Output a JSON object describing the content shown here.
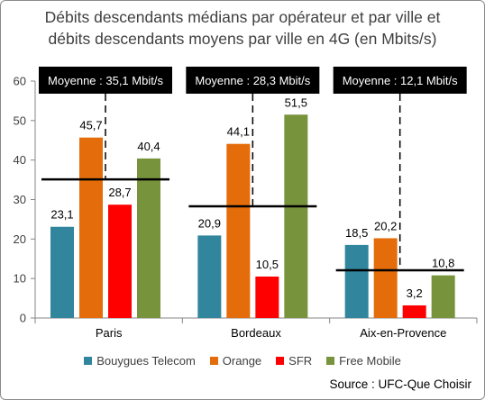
{
  "chart_data": {
    "type": "bar",
    "title": [
      "Débits descendants médians par opérateur et par ville et",
      "débits descendants moyens par ville en 4G (en Mbits/s)"
    ],
    "categories": [
      "Paris",
      "Bordeaux",
      "Aix-en-Provence"
    ],
    "series": [
      {
        "name": "Bouygues Telecom",
        "color": "#31859c",
        "values": [
          23.1,
          20.9,
          18.5
        ],
        "labels": [
          "23,1",
          "20,9",
          "18,5"
        ]
      },
      {
        "name": "Orange",
        "color": "#e46c0a",
        "values": [
          45.7,
          44.1,
          20.2
        ],
        "labels": [
          "45,7",
          "44,1",
          "20,2"
        ]
      },
      {
        "name": "SFR",
        "color": "#ff0000",
        "values": [
          28.7,
          10.5,
          3.2
        ],
        "labels": [
          "28,7",
          "10,5",
          "3,2"
        ]
      },
      {
        "name": "Free Mobile",
        "color": "#77933c",
        "values": [
          40.4,
          51.5,
          10.8
        ],
        "labels": [
          "40,4",
          "51,5",
          "10,8"
        ]
      }
    ],
    "averages": [
      {
        "value": 35.1,
        "label": "Moyenne : 35,1 Mbit/s"
      },
      {
        "value": 28.3,
        "label": "Moyenne : 28,3 Mbit/s"
      },
      {
        "value": 12.1,
        "label": "Moyenne : 12,1 Mbit/s"
      }
    ],
    "ylim": [
      0,
      60
    ],
    "yticks": [
      0,
      10,
      20,
      30,
      40,
      50,
      60
    ],
    "grid": false,
    "legend_position": "bottom",
    "source": "Source : UFC-Que Choisir"
  }
}
